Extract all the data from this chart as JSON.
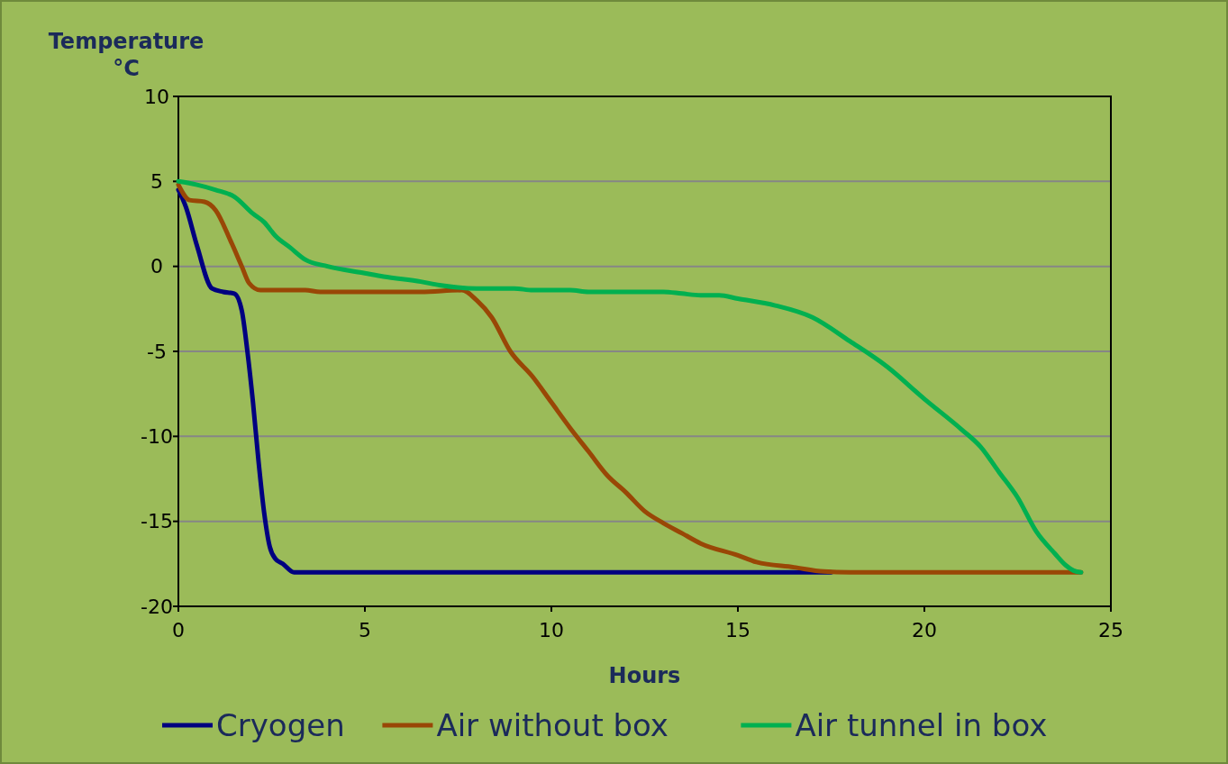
{
  "chart_data": {
    "type": "line",
    "xlabel": "Hours",
    "ylabel": "Temperature °C",
    "xlim": [
      0,
      25
    ],
    "ylim": [
      -20,
      10
    ],
    "xticks": [
      0,
      5,
      10,
      15,
      20,
      25
    ],
    "yticks": [
      -20,
      -15,
      -10,
      -5,
      0,
      5,
      10
    ],
    "grid": "y",
    "legend": "bottom",
    "marker": "none",
    "line_style": "solid",
    "series": [
      {
        "name": "Cryogen",
        "color": "#000080",
        "x": [
          0,
          0.2,
          0.5,
          0.9,
          1.2,
          1.5,
          1.7,
          1.85,
          2.0,
          2.15,
          2.3,
          2.45,
          2.6,
          2.8,
          3.1,
          5,
          10,
          15,
          17.5
        ],
        "values": [
          4.5,
          3.5,
          1.2,
          -1.3,
          -1.5,
          -1.6,
          -2.6,
          -5,
          -8,
          -11.5,
          -14.5,
          -16.5,
          -17.2,
          -17.5,
          -18,
          -18,
          -18,
          -18,
          -18
        ]
      },
      {
        "name": "Air without box",
        "color": "#994706",
        "x": [
          0,
          0.3,
          0.7,
          1.0,
          1.4,
          1.7,
          1.9,
          2.2,
          3.4,
          3.8,
          6.5,
          7.6,
          8.0,
          8.4,
          8.9,
          9.5,
          10,
          10.5,
          11,
          11.5,
          12,
          12.5,
          13,
          13.5,
          14,
          15,
          15.5,
          16.5,
          17.3,
          18,
          24.2
        ],
        "values": [
          4.8,
          3.9,
          3.8,
          3.3,
          1.5,
          0,
          -1.0,
          -1.4,
          -1.4,
          -1.5,
          -1.5,
          -1.4,
          -2.0,
          -3,
          -5,
          -6.5,
          -8,
          -9.5,
          -10.9,
          -12.3,
          -13.3,
          -14.4,
          -15.1,
          -15.7,
          -16.3,
          -17,
          -17.4,
          -17.7,
          -17.95,
          -18,
          -18
        ]
      },
      {
        "name": "Air tunnel in box",
        "color": "#00b050",
        "x": [
          0,
          0.5,
          1,
          1.5,
          2,
          2.3,
          2.6,
          3,
          3.4,
          4,
          5,
          5.5,
          6.5,
          7,
          8,
          9,
          9.5,
          10.5,
          11,
          13,
          13.5,
          14,
          14.5,
          15,
          16,
          17,
          18,
          19,
          20,
          21,
          21.5,
          22,
          22.5,
          23,
          23.5,
          23.8,
          24.0,
          24.2
        ],
        "values": [
          5,
          4.8,
          4.5,
          4.1,
          3.1,
          2.6,
          1.8,
          1.1,
          0.4,
          0,
          -0.4,
          -0.6,
          -0.9,
          -1.1,
          -1.3,
          -1.3,
          -1.4,
          -1.4,
          -1.5,
          -1.5,
          -1.6,
          -1.7,
          -1.7,
          -1.9,
          -2.3,
          -3.0,
          -4.4,
          -5.9,
          -7.8,
          -9.6,
          -10.6,
          -12.1,
          -13.6,
          -15.6,
          -16.9,
          -17.6,
          -17.9,
          -18
        ]
      }
    ]
  }
}
